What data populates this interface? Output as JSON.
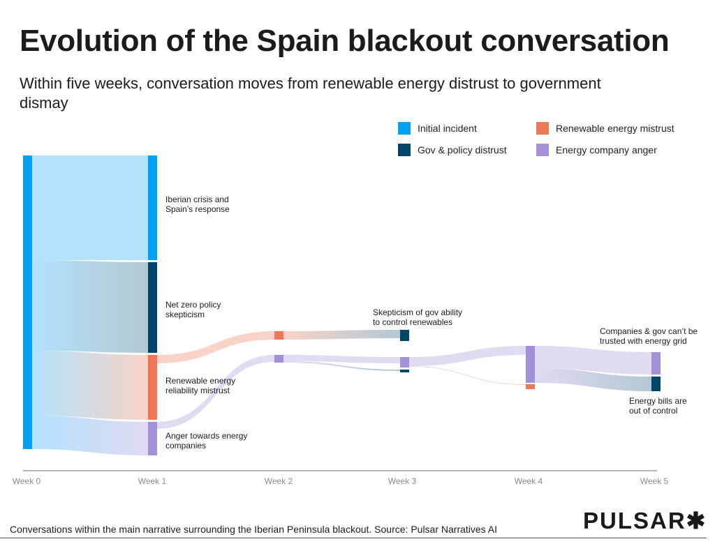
{
  "title": "Evolution of the Spain blackout conversation",
  "subtitle": "Within five weeks, conversation moves from renewable energy distrust to government dismay",
  "legend": [
    {
      "label": "Initial incident",
      "color": "#00a0f5"
    },
    {
      "label": "Renewable energy mistrust",
      "color": "#f07755"
    },
    {
      "label": "Gov & policy distrust",
      "color": "#00466b"
    },
    {
      "label": "Energy company anger",
      "color": "#a390d8"
    }
  ],
  "footer": "Conversations within the main narrative surrounding the Iberian Peninsula blackout. Source: Pulsar Narratives AI",
  "logo": "PULSAR✱",
  "chart_data": {
    "type": "sankey",
    "title": "Evolution of the Spain blackout conversation",
    "x_ticks": [
      "Week 0",
      "Week 1",
      "Week 2",
      "Week 3",
      "Week 4",
      "Week 5"
    ],
    "categories": {
      "initial": "#00a0f5",
      "renewable": "#f07755",
      "gov": "#00466b",
      "anger": "#a390d8"
    },
    "nodes": [
      {
        "id": "w0",
        "week": 0,
        "label": "",
        "category": "initial"
      },
      {
        "id": "w1_iberian",
        "week": 1,
        "label": "Iberian crisis and Spain’s response",
        "category": "initial"
      },
      {
        "id": "w1_netzero",
        "week": 1,
        "label": "Net zero policy skepticism",
        "category": "gov"
      },
      {
        "id": "w1_renew",
        "week": 1,
        "label": "Renewable energy reliability mistrust",
        "category": "renewable"
      },
      {
        "id": "w1_anger",
        "week": 1,
        "label": "Anger towards energy companies",
        "category": "anger"
      },
      {
        "id": "w2_renew",
        "week": 2,
        "label": "",
        "category": "renewable"
      },
      {
        "id": "w2_anger",
        "week": 2,
        "label": "",
        "category": "anger"
      },
      {
        "id": "w3_skeptic",
        "week": 3,
        "label": "Skepticism of gov ability to control renewables",
        "category": "gov"
      },
      {
        "id": "w3_anger",
        "week": 3,
        "label": "",
        "category": "anger"
      },
      {
        "id": "w3_gov",
        "week": 3,
        "label": "",
        "category": "gov"
      },
      {
        "id": "w4_anger",
        "week": 4,
        "label": "",
        "category": "anger"
      },
      {
        "id": "w4_renew",
        "week": 4,
        "label": "",
        "category": "renewable"
      },
      {
        "id": "w5_companies",
        "week": 5,
        "label": "Companies & gov can’t be trusted with energy grid",
        "category": "anger"
      },
      {
        "id": "w5_bills",
        "week": 5,
        "label": "Energy bills are out of control",
        "category": "gov"
      }
    ],
    "links": [
      {
        "source": "w0",
        "target": "w1_iberian",
        "value": 150
      },
      {
        "source": "w0",
        "target": "w1_netzero",
        "value": 130
      },
      {
        "source": "w0",
        "target": "w1_renew",
        "value": 93
      },
      {
        "source": "w0",
        "target": "w1_anger",
        "value": 48
      },
      {
        "source": "w1_renew",
        "target": "w2_renew",
        "value": 12
      },
      {
        "source": "w1_anger",
        "target": "w2_anger",
        "value": 10
      },
      {
        "source": "w2_renew",
        "target": "w3_skeptic",
        "value": 12
      },
      {
        "source": "w2_anger",
        "target": "w3_anger",
        "value": 9
      },
      {
        "source": "w2_anger",
        "target": "w3_gov",
        "value": 2
      },
      {
        "source": "w3_anger",
        "target": "w4_anger",
        "value": 13
      },
      {
        "source": "w3_anger",
        "target": "w4_renew",
        "value": 1
      },
      {
        "source": "w4_anger",
        "target": "w5_companies",
        "value": 32
      },
      {
        "source": "w4_anger",
        "target": "w5_bills",
        "value": 21
      }
    ]
  }
}
